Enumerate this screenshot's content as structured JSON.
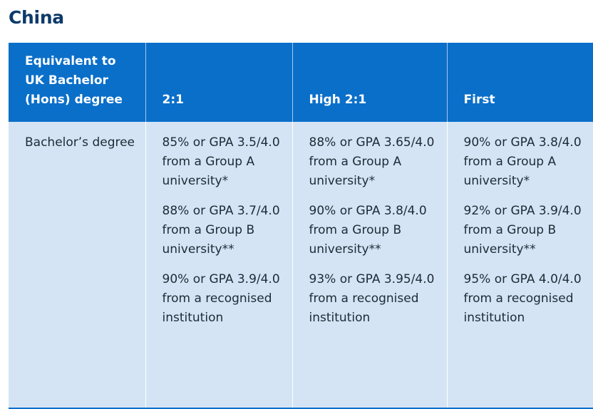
{
  "page": {
    "title": "China"
  },
  "table": {
    "headers": [
      "Equivalent to UK Bachelor (Hons) degree",
      "2:1",
      "High 2:1",
      "First"
    ],
    "row": {
      "label": "Bachelor’s degree",
      "cells": [
        [
          "85% or GPA 3.5/4.0 from a Group A university*",
          "88% or GPA 3.7/4.0 from a Group B university**",
          "90% or GPA 3.9/4.0 from a recognised institution"
        ],
        [
          "88% or GPA 3.65/4.0 from a Group A university*",
          "90% or GPA 3.8/4.0 from a Group B university**",
          "93% or GPA 3.95/4.0 from a recognised institution"
        ],
        [
          "90% or GPA 3.8/4.0 from a Group A university*",
          "92% or GPA 3.9/4.0 from a Group B university**",
          "95% or GPA 4.0/4.0 from a recognised institution"
        ]
      ]
    }
  }
}
